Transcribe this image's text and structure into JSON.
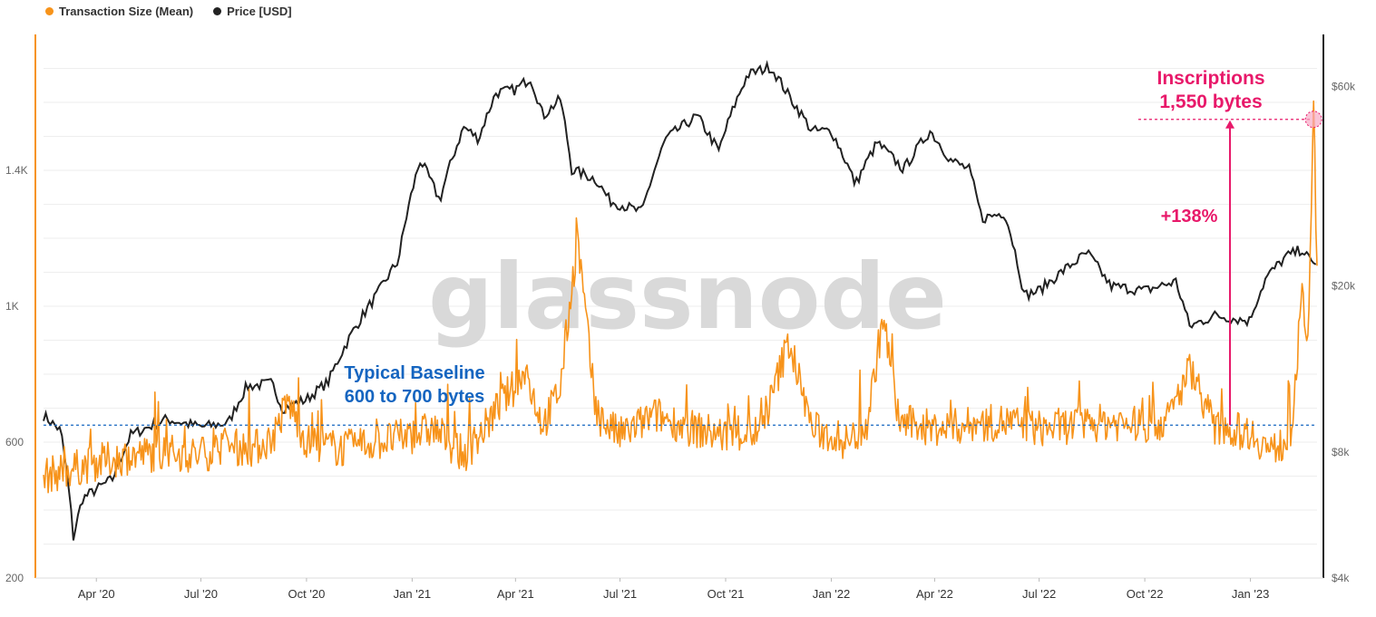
{
  "legend": {
    "items": [
      {
        "label": "Transaction Size (Mean)",
        "color": "#f7931a"
      },
      {
        "label": "Price [USD]",
        "color": "#222222"
      }
    ]
  },
  "watermark": "glassnode",
  "annotations": {
    "baseline_line1": "Typical Baseline",
    "baseline_line2": "600 to 700 bytes",
    "inscriptions_line1": "Inscriptions",
    "inscriptions_line2": "1,550 bytes",
    "increase": "+138%",
    "baseline_color": "#1565c0",
    "highlight_color": "#e8196a"
  },
  "chart_data": {
    "type": "line",
    "x_tick_labels": [
      "Apr '20",
      "Jul '20",
      "Oct '20",
      "Jan '21",
      "Apr '21",
      "Jul '21",
      "Oct '21",
      "Jan '22",
      "Apr '22",
      "Jul '22",
      "Oct '22",
      "Jan '23"
    ],
    "left_axis": {
      "tick_labels": [
        "200",
        "600",
        "1K",
        "1.4K"
      ],
      "ticks": [
        200,
        600,
        1000,
        1400
      ],
      "range": [
        200,
        1800
      ]
    },
    "right_axis": {
      "tick_labels": [
        "$4k",
        "$8k",
        "$20k",
        "$60k"
      ],
      "ticks": [
        4000,
        8000,
        20000,
        60000
      ],
      "scale": "log",
      "range": [
        4000,
        80000
      ]
    },
    "baseline_value": 650,
    "inscription_value": 1550,
    "x_range": [
      "2020-02-15",
      "2023-02-28"
    ],
    "series": [
      {
        "name": "Transaction Size (Mean)",
        "axis": "left",
        "color": "#f7931a",
        "points": [
          [
            "2020-02-15",
            500
          ],
          [
            "2020-03-10",
            520
          ],
          [
            "2020-04-01",
            540
          ],
          [
            "2020-05-01",
            560
          ],
          [
            "2020-06-01",
            570
          ],
          [
            "2020-07-01",
            560
          ],
          [
            "2020-07-20",
            590
          ],
          [
            "2020-08-15",
            580
          ],
          [
            "2020-09-01",
            610
          ],
          [
            "2020-09-15",
            720
          ],
          [
            "2020-10-01",
            600
          ],
          [
            "2020-11-01",
            580
          ],
          [
            "2020-12-01",
            600
          ],
          [
            "2021-01-01",
            620
          ],
          [
            "2021-01-20",
            640
          ],
          [
            "2021-02-15",
            560
          ],
          [
            "2021-03-01",
            620
          ],
          [
            "2021-03-20",
            720
          ],
          [
            "2021-04-10",
            800
          ],
          [
            "2021-04-25",
            650
          ],
          [
            "2021-05-10",
            760
          ],
          [
            "2021-05-25",
            1200
          ],
          [
            "2021-06-10",
            680
          ],
          [
            "2021-07-01",
            620
          ],
          [
            "2021-08-01",
            680
          ],
          [
            "2021-09-01",
            640
          ],
          [
            "2021-10-01",
            620
          ],
          [
            "2021-11-01",
            630
          ],
          [
            "2021-11-25",
            900
          ],
          [
            "2021-12-15",
            640
          ],
          [
            "2022-01-15",
            600
          ],
          [
            "2022-02-01",
            650
          ],
          [
            "2022-02-15",
            970
          ],
          [
            "2022-03-01",
            660
          ],
          [
            "2022-04-01",
            640
          ],
          [
            "2022-05-01",
            650
          ],
          [
            "2022-06-01",
            660
          ],
          [
            "2022-07-01",
            640
          ],
          [
            "2022-08-01",
            650
          ],
          [
            "2022-09-01",
            660
          ],
          [
            "2022-10-01",
            650
          ],
          [
            "2022-10-20",
            660
          ],
          [
            "2022-11-10",
            820
          ],
          [
            "2022-12-01",
            640
          ],
          [
            "2023-01-01",
            630
          ],
          [
            "2023-01-20",
            570
          ],
          [
            "2023-02-05",
            620
          ],
          [
            "2023-02-15",
            1020
          ],
          [
            "2023-02-20",
            900
          ],
          [
            "2023-02-25",
            1550
          ],
          [
            "2023-02-28",
            1100
          ]
        ]
      },
      {
        "name": "Price [USD]",
        "axis": "right",
        "color": "#222222",
        "points": [
          [
            "2020-02-15",
            9800
          ],
          [
            "2020-03-01",
            9000
          ],
          [
            "2020-03-12",
            5000
          ],
          [
            "2020-03-20",
            6200
          ],
          [
            "2020-04-15",
            6900
          ],
          [
            "2020-05-01",
            8800
          ],
          [
            "2020-06-01",
            9600
          ],
          [
            "2020-07-01",
            9200
          ],
          [
            "2020-07-25",
            9400
          ],
          [
            "2020-08-10",
            11500
          ],
          [
            "2020-09-01",
            11700
          ],
          [
            "2020-09-10",
            10200
          ],
          [
            "2020-10-01",
            10700
          ],
          [
            "2020-10-20",
            11800
          ],
          [
            "2020-11-10",
            15500
          ],
          [
            "2020-12-01",
            19000
          ],
          [
            "2020-12-20",
            23000
          ],
          [
            "2021-01-08",
            40000
          ],
          [
            "2021-01-25",
            32000
          ],
          [
            "2021-02-15",
            48000
          ],
          [
            "2021-02-28",
            45000
          ],
          [
            "2021-03-15",
            58000
          ],
          [
            "2021-04-01",
            59000
          ],
          [
            "2021-04-14",
            63000
          ],
          [
            "2021-04-25",
            51000
          ],
          [
            "2021-05-10",
            56000
          ],
          [
            "2021-05-20",
            38000
          ],
          [
            "2021-06-10",
            36000
          ],
          [
            "2021-06-22",
            32000
          ],
          [
            "2021-07-20",
            30000
          ],
          [
            "2021-08-10",
            45000
          ],
          [
            "2021-09-06",
            51000
          ],
          [
            "2021-09-25",
            42000
          ],
          [
            "2021-10-20",
            64000
          ],
          [
            "2021-11-09",
            67000
          ],
          [
            "2021-11-25",
            57000
          ],
          [
            "2021-12-15",
            47000
          ],
          [
            "2022-01-01",
            47000
          ],
          [
            "2022-01-22",
            35000
          ],
          [
            "2022-02-10",
            44000
          ],
          [
            "2022-03-05",
            38000
          ],
          [
            "2022-03-28",
            47000
          ],
          [
            "2022-04-15",
            40000
          ],
          [
            "2022-05-01",
            38000
          ],
          [
            "2022-05-12",
            29000
          ],
          [
            "2022-06-01",
            30000
          ],
          [
            "2022-06-18",
            19000
          ],
          [
            "2022-07-01",
            19500
          ],
          [
            "2022-08-12",
            24000
          ],
          [
            "2022-09-01",
            20000
          ],
          [
            "2022-10-01",
            19500
          ],
          [
            "2022-10-28",
            20500
          ],
          [
            "2022-11-09",
            16000
          ],
          [
            "2022-12-01",
            17000
          ],
          [
            "2022-12-31",
            16500
          ],
          [
            "2023-01-15",
            21000
          ],
          [
            "2023-02-01",
            23500
          ],
          [
            "2023-02-15",
            24500
          ],
          [
            "2023-02-24",
            22500
          ],
          [
            "2023-02-28",
            23000
          ]
        ]
      }
    ]
  }
}
